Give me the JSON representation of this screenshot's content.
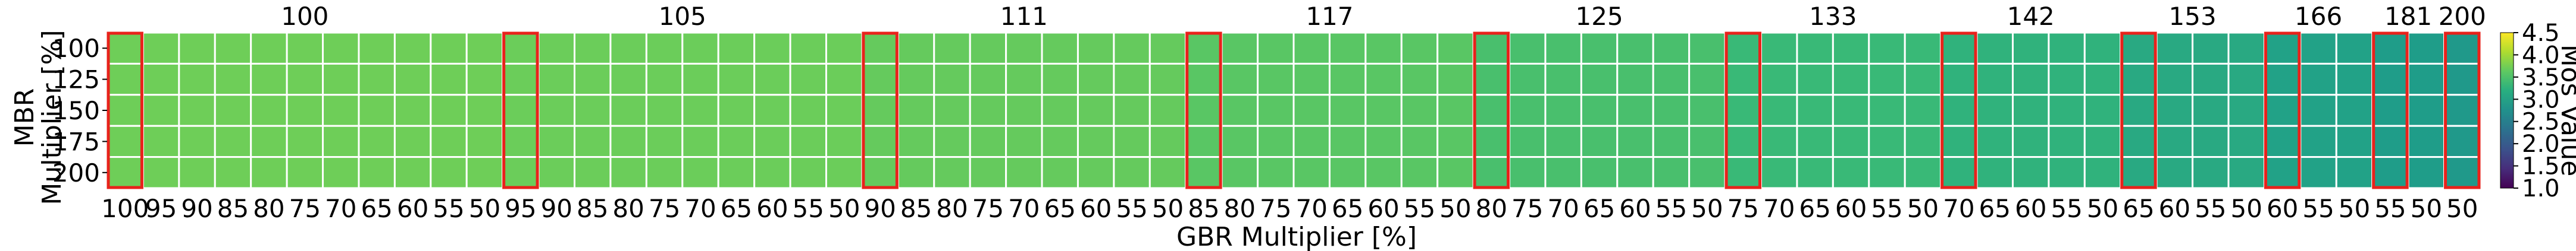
{
  "chart_data": {
    "type": "heatmap",
    "title": "",
    "xlabel": "GBR Multiplier [%]",
    "ylabel": "MBR\nMultiplier [%]",
    "colorbar_label": "Mos Value",
    "colorbar_ticks": [
      "1.0",
      "1.5",
      "2.0",
      "2.5",
      "3.0",
      "3.5",
      "4.0",
      "4.5"
    ],
    "colorbar_range": [
      1.0,
      4.5
    ],
    "y_categories": [
      "100",
      "125",
      "150",
      "175",
      "200"
    ],
    "x_tick_labels": [
      "100",
      "95",
      "90",
      "85",
      "80",
      "75",
      "70",
      "65",
      "60",
      "55",
      "50",
      "95",
      "90",
      "85",
      "80",
      "75",
      "70",
      "65",
      "60",
      "55",
      "50",
      "90",
      "85",
      "80",
      "75",
      "70",
      "65",
      "60",
      "55",
      "50",
      "85",
      "80",
      "75",
      "70",
      "65",
      "60",
      "55",
      "50",
      "80",
      "75",
      "70",
      "65",
      "60",
      "55",
      "50",
      "75",
      "70",
      "65",
      "60",
      "55",
      "50",
      "70",
      "65",
      "60",
      "55",
      "50",
      "65",
      "60",
      "55",
      "50",
      "60",
      "55",
      "50",
      "55",
      "50",
      "50"
    ],
    "groups": [
      {
        "label": "100",
        "count": 11,
        "value": 3.72
      },
      {
        "label": "105",
        "count": 10,
        "value": 3.7
      },
      {
        "label": "111",
        "count": 9,
        "value": 3.66
      },
      {
        "label": "117",
        "count": 8,
        "value": 3.58
      },
      {
        "label": "125",
        "count": 7,
        "value": 3.47
      },
      {
        "label": "133",
        "count": 6,
        "value": 3.36
      },
      {
        "label": "142",
        "count": 5,
        "value": 3.25
      },
      {
        "label": "153",
        "count": 4,
        "value": 3.12
      },
      {
        "label": "166",
        "count": 3,
        "value": 3.0
      },
      {
        "label": "181",
        "count": 2,
        "value": 2.93
      },
      {
        "label": "200",
        "count": 1,
        "value": 2.88
      }
    ],
    "highlight": "first column of each group outlined in red",
    "highlight_color": "#e8221b",
    "grid": true,
    "colormap": "viridis"
  }
}
